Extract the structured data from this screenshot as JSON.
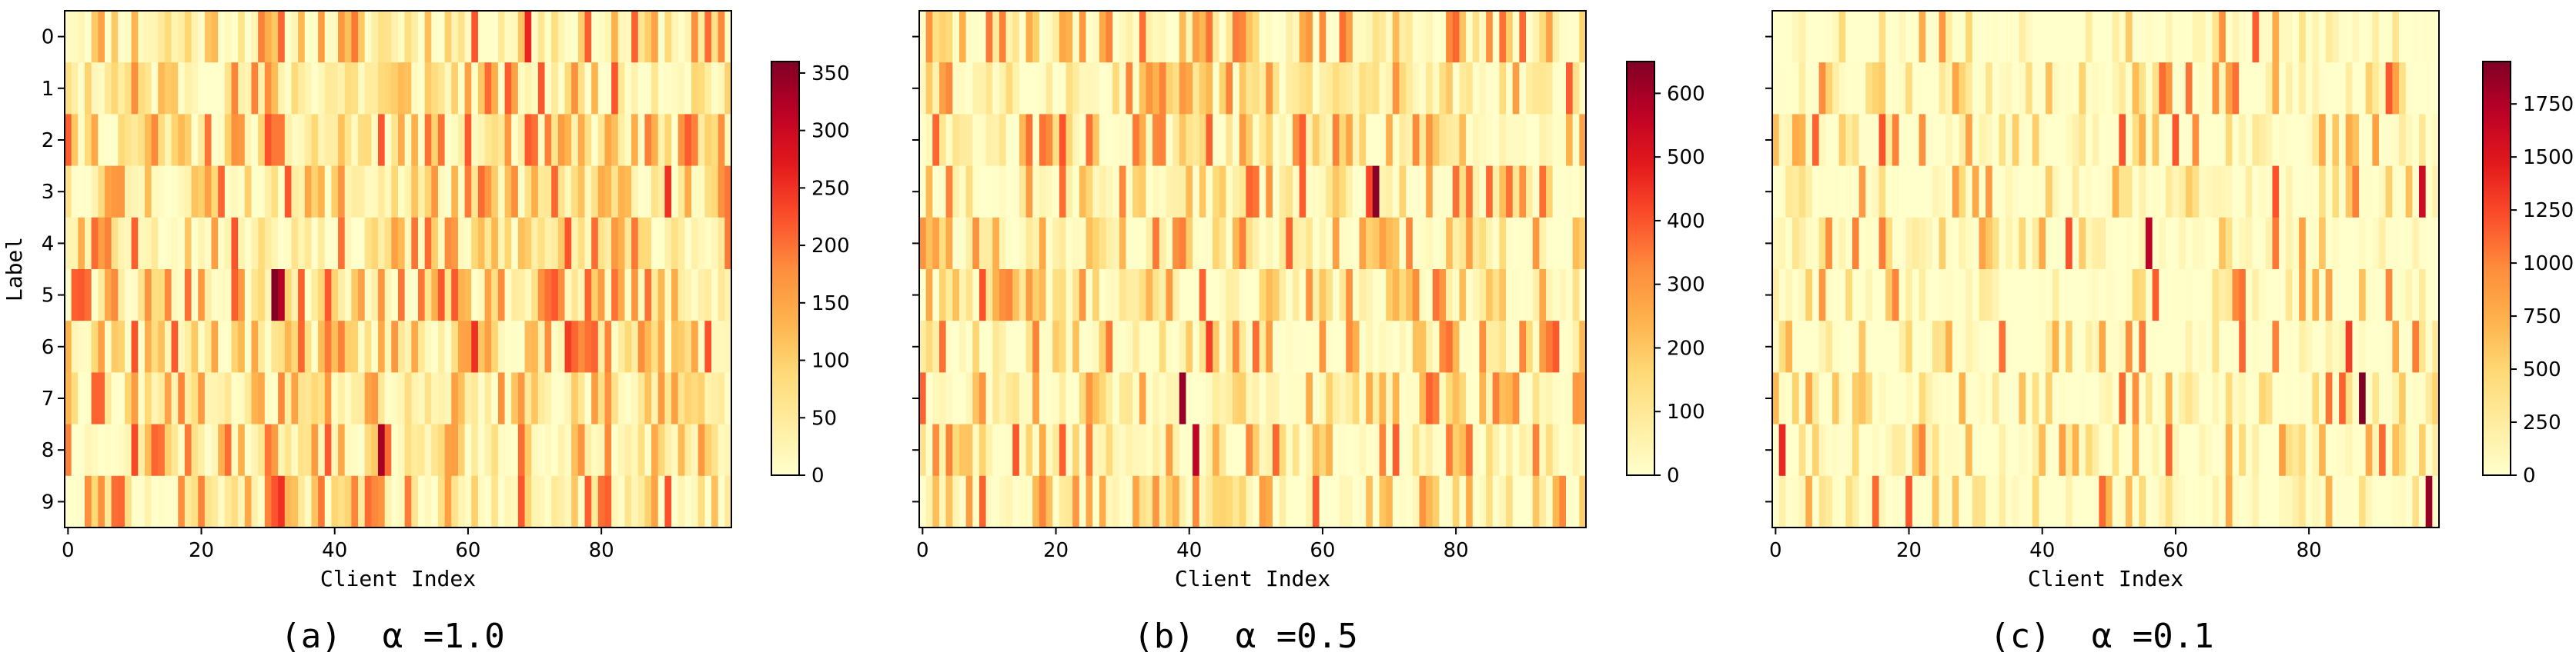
{
  "figure": {
    "ylabel": "Label",
    "colormap": [
      "#ffffcc",
      "#ffeda0",
      "#fed976",
      "#feb24c",
      "#fd8d3c",
      "#fc4e2a",
      "#e31a1c",
      "#bd0026",
      "#800026"
    ]
  },
  "chart_data": [
    {
      "type": "heatmap",
      "caption": "(a)  α =1.0",
      "xlabel": "Client Index",
      "ylabel": "Label",
      "y_categories": [
        "0",
        "1",
        "2",
        "3",
        "4",
        "5",
        "6",
        "7",
        "8",
        "9"
      ],
      "x_range": [
        0,
        99
      ],
      "x_ticks": [
        0,
        20,
        40,
        60,
        80
      ],
      "colorbar": {
        "min": 0,
        "max": 360,
        "ticks": [
          0,
          50,
          100,
          150,
          200,
          250,
          300,
          350
        ]
      },
      "notable_cells": [
        {
          "label": 5,
          "client": 31,
          "value": 360
        },
        {
          "label": 5,
          "client": 32,
          "value": 320
        },
        {
          "label": 8,
          "client": 47,
          "value": 330
        },
        {
          "label": 0,
          "client": 69,
          "value": 260
        },
        {
          "label": 9,
          "client": 32,
          "value": 250
        },
        {
          "label": 3,
          "client": 90,
          "value": 250
        },
        {
          "label": 6,
          "client": 61,
          "value": 250
        },
        {
          "label": 6,
          "client": 75,
          "value": 240
        },
        {
          "label": 8,
          "client": 10,
          "value": 230
        },
        {
          "label": 7,
          "client": 5,
          "value": 210
        },
        {
          "label": 4,
          "client": 75,
          "value": 220
        },
        {
          "label": 5,
          "client": 78,
          "value": 210
        },
        {
          "label": 6,
          "client": 79,
          "value": 210
        },
        {
          "label": 5,
          "client": 82,
          "value": 200
        },
        {
          "label": 6,
          "client": 78,
          "value": 200
        },
        {
          "label": 8,
          "client": 14,
          "value": 200
        },
        {
          "label": 4,
          "client": 41,
          "value": 200
        }
      ]
    },
    {
      "type": "heatmap",
      "caption": "(b)  α =0.5",
      "xlabel": "Client Index",
      "ylabel": "Label",
      "y_categories": [
        "0",
        "1",
        "2",
        "3",
        "4",
        "5",
        "6",
        "7",
        "8",
        "9"
      ],
      "x_range": [
        0,
        99
      ],
      "x_ticks": [
        0,
        20,
        40,
        60,
        80
      ],
      "colorbar": {
        "min": 0,
        "max": 650,
        "ticks": [
          0,
          100,
          200,
          300,
          400,
          500,
          600
        ]
      },
      "notable_cells": [
        {
          "label": 3,
          "client": 68,
          "value": 640
        },
        {
          "label": 7,
          "client": 39,
          "value": 620
        },
        {
          "label": 8,
          "client": 41,
          "value": 560
        },
        {
          "label": 6,
          "client": 43,
          "value": 430
        },
        {
          "label": 3,
          "client": 67,
          "value": 420
        },
        {
          "label": 2,
          "client": 21,
          "value": 400
        },
        {
          "label": 5,
          "client": 42,
          "value": 380
        },
        {
          "label": 9,
          "client": 9,
          "value": 380
        },
        {
          "label": 2,
          "client": 16,
          "value": 360
        },
        {
          "label": 2,
          "client": 25,
          "value": 360
        },
        {
          "label": 6,
          "client": 3,
          "value": 360
        },
        {
          "label": 3,
          "client": 4,
          "value": 340
        },
        {
          "label": 6,
          "client": 94,
          "value": 350
        },
        {
          "label": 7,
          "client": 89,
          "value": 320
        },
        {
          "label": 0,
          "client": 24,
          "value": 300
        },
        {
          "label": 0,
          "client": 16,
          "value": 260
        }
      ]
    },
    {
      "type": "heatmap",
      "caption": "(c)  α =0.1",
      "xlabel": "Client Index",
      "ylabel": "Label",
      "y_categories": [
        "0",
        "1",
        "2",
        "3",
        "4",
        "5",
        "6",
        "7",
        "8",
        "9"
      ],
      "x_range": [
        0,
        99
      ],
      "x_ticks": [
        0,
        20,
        40,
        60,
        80
      ],
      "colorbar": {
        "min": 0,
        "max": 1950,
        "ticks": [
          0,
          250,
          500,
          750,
          1000,
          1250,
          1500,
          1750
        ]
      },
      "notable_cells": [
        {
          "label": 7,
          "client": 88,
          "value": 1950
        },
        {
          "label": 9,
          "client": 98,
          "value": 1850
        },
        {
          "label": 4,
          "client": 56,
          "value": 1700
        },
        {
          "label": 3,
          "client": 97,
          "value": 1600
        },
        {
          "label": 8,
          "client": 1,
          "value": 1400
        },
        {
          "label": 6,
          "client": 86,
          "value": 1300
        },
        {
          "label": 2,
          "client": 16,
          "value": 1200
        },
        {
          "label": 1,
          "client": 58,
          "value": 1100
        },
        {
          "label": 5,
          "client": 92,
          "value": 1000
        },
        {
          "label": 0,
          "client": 25,
          "value": 900
        },
        {
          "label": 7,
          "client": 5,
          "value": 800
        }
      ]
    }
  ]
}
